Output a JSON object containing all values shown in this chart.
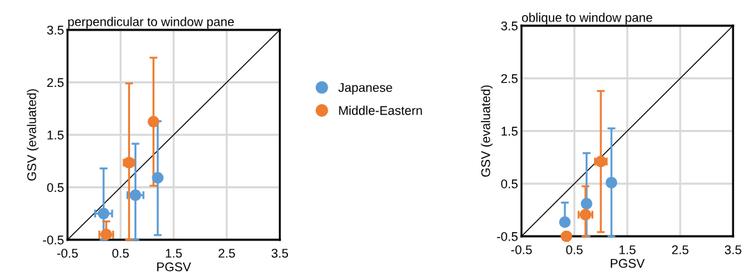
{
  "chart_data": [
    {
      "type": "scatter",
      "title": "perpendicular to window pane",
      "xlabel": "PGSV",
      "ylabel": "GSV (evaluated)",
      "xlim": [
        -0.5,
        3.5
      ],
      "ylim": [
        -0.5,
        3.5
      ],
      "xticks": [
        -0.5,
        0.5,
        1.5,
        2.5,
        3.5
      ],
      "yticks": [
        -0.5,
        0.5,
        1.5,
        2.5,
        3.5
      ],
      "grid": true,
      "legend": "right",
      "marker": "circle",
      "series": [
        {
          "name": "Japanese",
          "color": "#5b9bd5",
          "x": [
            0.18,
            0.78,
            1.2
          ],
          "values": [
            0.0,
            0.35,
            0.68
          ],
          "errors": [
            [
              -0.5,
              0.86
            ],
            [
              -0.5,
              1.33
            ],
            [
              -0.41,
              1.76
            ]
          ],
          "xerrors": [
            0.16,
            0.15,
            null
          ]
        },
        {
          "name": "Middle-Eastern",
          "color": "#ed7d31",
          "x": [
            0.23,
            0.66,
            1.12
          ],
          "values": [
            -0.4,
            0.97,
            1.75
          ],
          "errors": [
            [
              -0.4,
              -0.15
            ],
            [
              -0.5,
              2.48
            ],
            [
              0.53,
              2.97
            ]
          ],
          "xerrors": [
            0.13,
            0.1,
            null
          ]
        },
        {
          "type": "line",
          "marker": "none",
          "color": "#000000",
          "x": [
            -0.5,
            3.5
          ],
          "values": [
            -0.5,
            3.5
          ]
        }
      ]
    },
    {
      "type": "scatter",
      "title": "oblique to window pane",
      "xlabel": "PGSV",
      "ylabel": "GSV (evaluated)",
      "xlim": [
        -0.5,
        3.5
      ],
      "ylim": [
        -0.5,
        3.5
      ],
      "xticks": [
        -0.5,
        0.5,
        1.5,
        2.5,
        3.5
      ],
      "yticks": [
        -0.5,
        0.5,
        1.5,
        2.5,
        3.5
      ],
      "grid": true,
      "marker": "circle",
      "series": [
        {
          "color": "#5b9bd5",
          "x": [
            0.32,
            0.73,
            1.2
          ],
          "values": [
            -0.23,
            0.12,
            0.52
          ],
          "errors": [
            [
              -0.23,
              0.14
            ],
            [
              -0.5,
              1.08
            ],
            [
              -0.5,
              1.55
            ]
          ]
        },
        {
          "color": "#ed7d31",
          "x": [
            0.35,
            0.71,
            1.0
          ],
          "values": [
            -0.5,
            -0.09,
            0.92
          ],
          "errors": [
            null,
            [
              -0.5,
              0.45
            ],
            [
              -0.42,
              2.26
            ]
          ],
          "xerrors": [
            null,
            0.13,
            0.11
          ]
        },
        {
          "type": "line",
          "marker": "none",
          "color": "#000000",
          "x": [
            -0.5,
            3.5
          ],
          "values": [
            -0.5,
            3.5
          ]
        }
      ]
    }
  ]
}
